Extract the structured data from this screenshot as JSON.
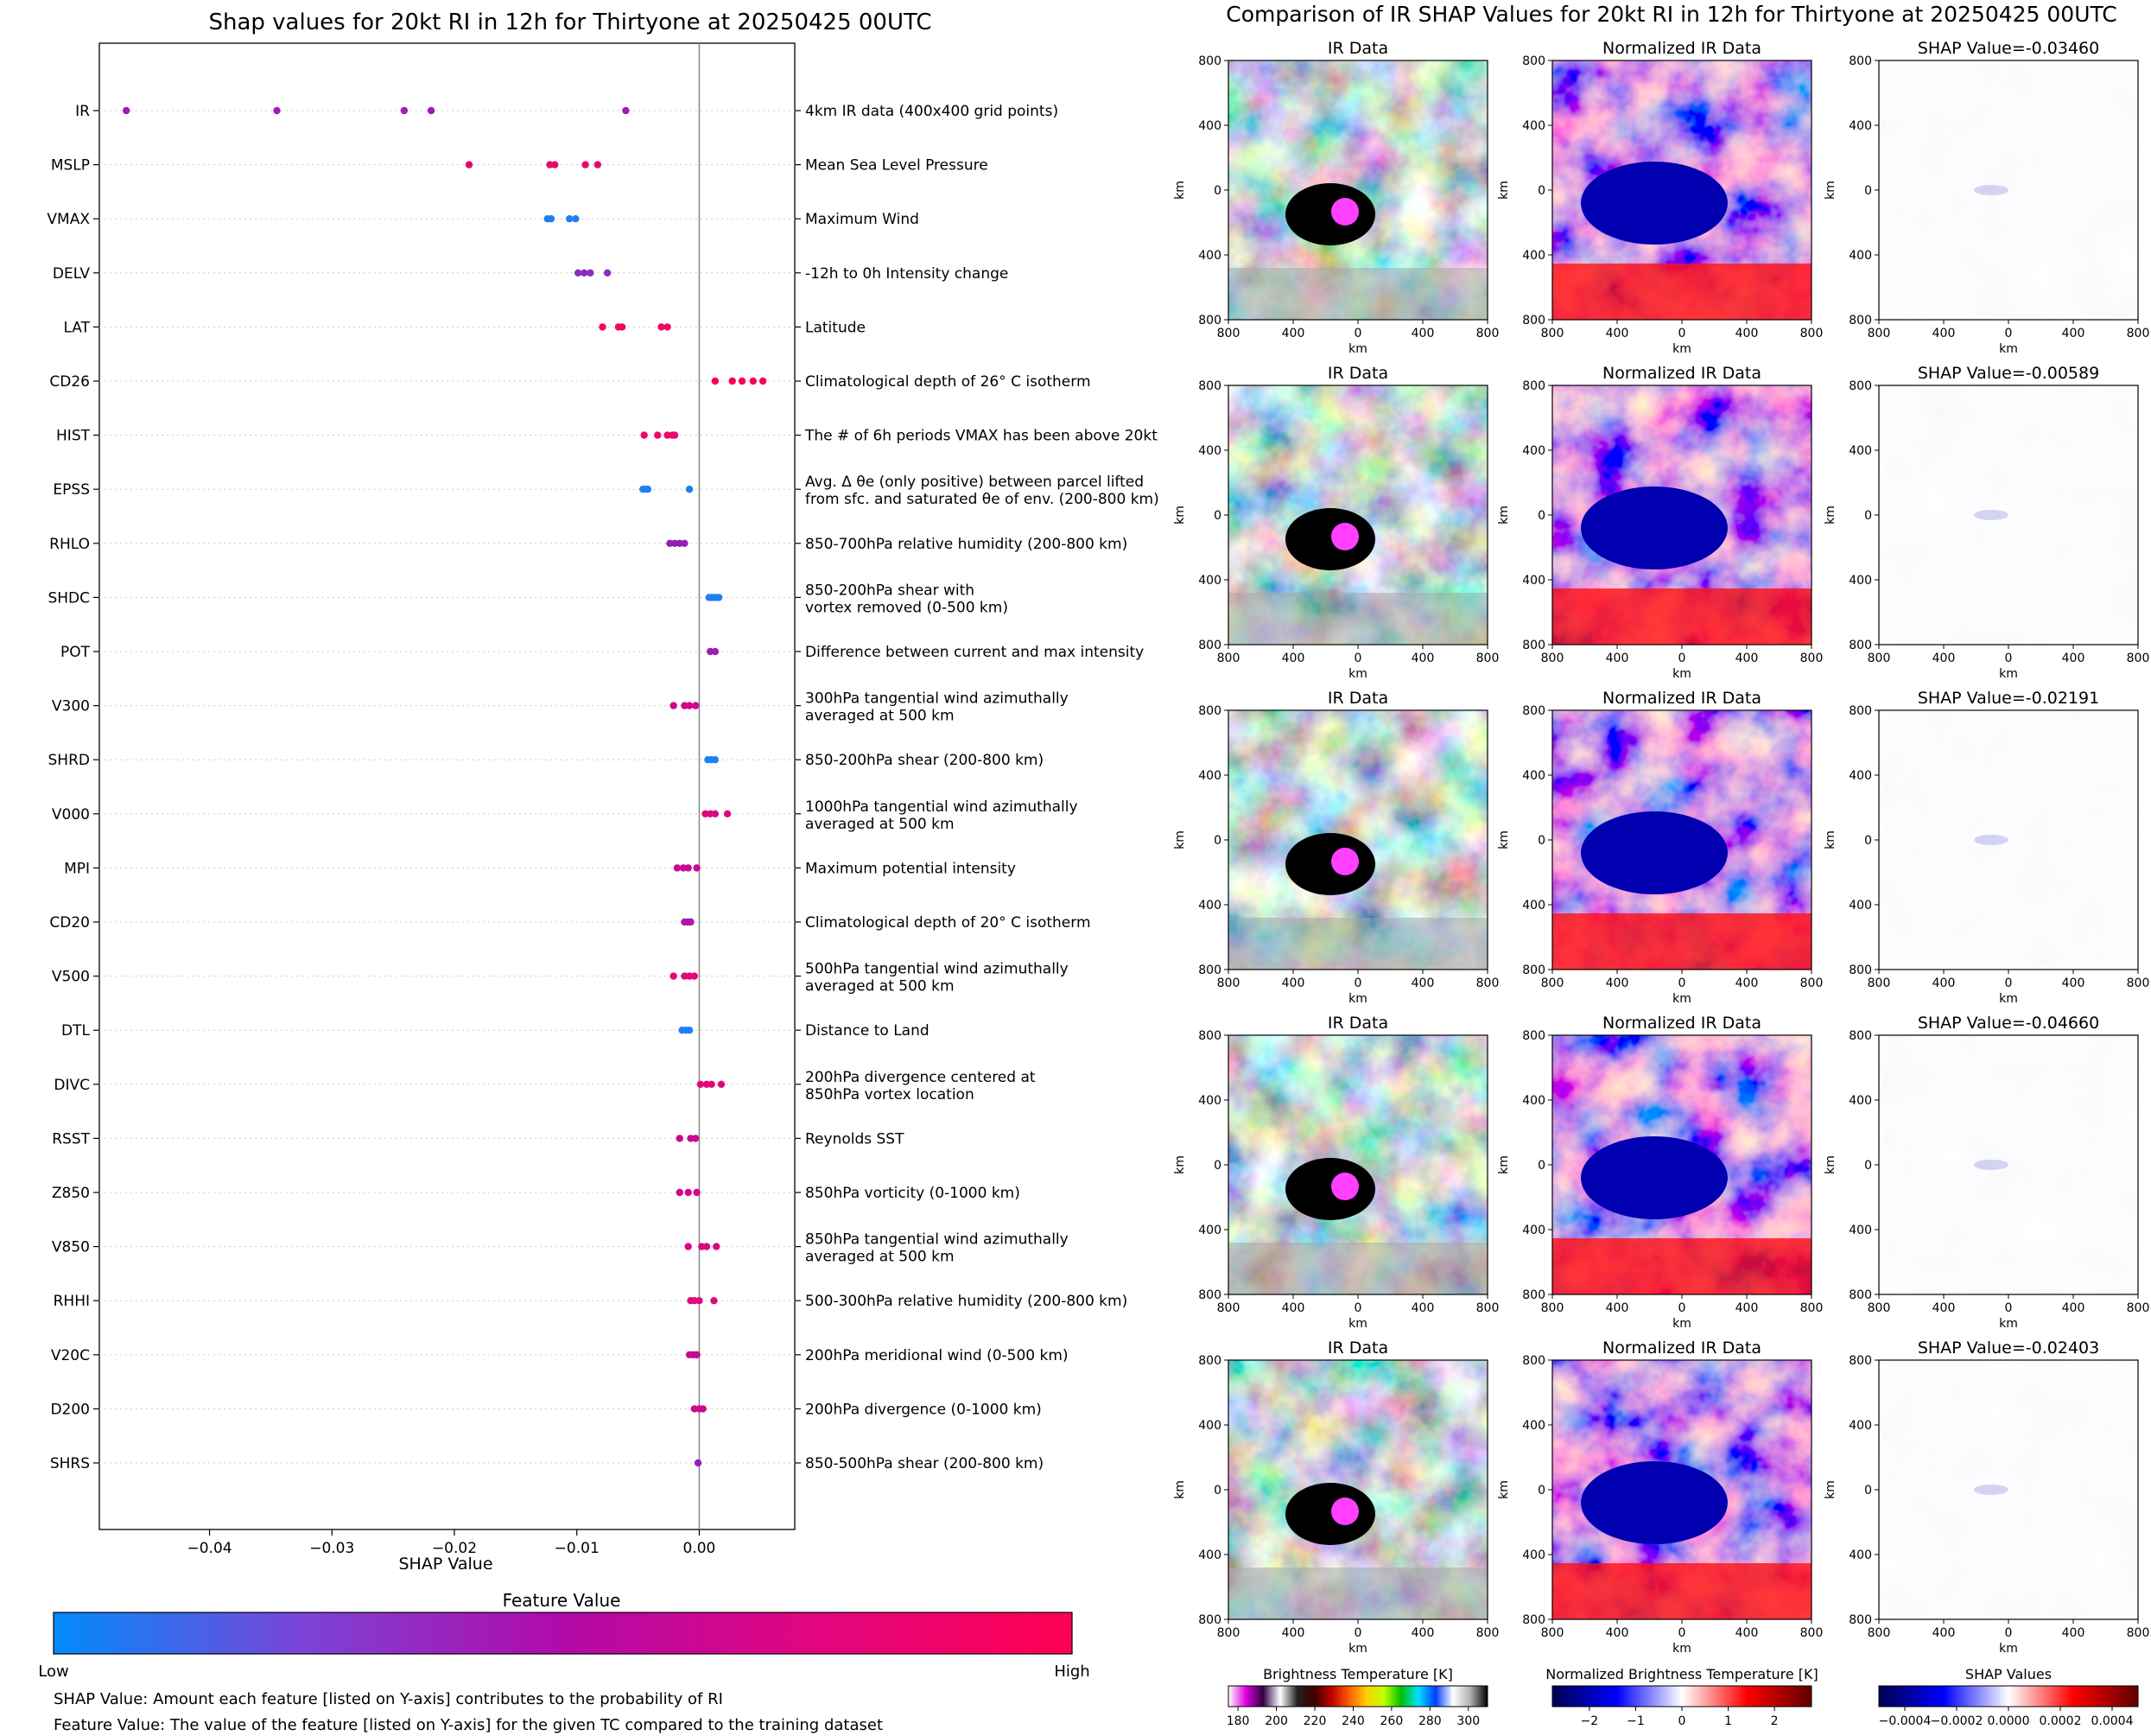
{
  "chart_data": [
    {
      "type": "scatter",
      "title": "Shap values for 20kt RI in 12h for Thirtyone at 20250425 00UTC",
      "xlabel": "SHAP Value",
      "xlim": [
        -0.049,
        0.0078
      ],
      "xticks": [
        -0.04,
        -0.03,
        -0.02,
        -0.01,
        0.0
      ],
      "xtick_labels": [
        "−0.04",
        "−0.03",
        "−0.02",
        "−0.01",
        "0.00"
      ],
      "grid": false,
      "features": [
        {
          "name": "IR",
          "description": "4km IR data (400x400 grid points)",
          "color": "#9b1fb3",
          "values": [
            -0.0468,
            -0.0345,
            -0.0241,
            -0.0219,
            -0.006
          ]
        },
        {
          "name": "MSLP",
          "description": "Mean Sea Level Pressure",
          "color": "#e8096c",
          "values": [
            -0.0188,
            -0.0122,
            -0.0118,
            -0.0093,
            -0.0083
          ]
        },
        {
          "name": "VMAX",
          "description": "Maximum Wind",
          "color": "#1e7ff0",
          "values": [
            -0.0124,
            -0.0121,
            -0.0106,
            -0.0101
          ]
        },
        {
          "name": "DELV",
          "description": "-12h to 0h Intensity change",
          "color": "#8a2cbf",
          "values": [
            -0.0099,
            -0.0094,
            -0.0089,
            -0.0075
          ]
        },
        {
          "name": "LAT",
          "description": "Latitude",
          "color": "#ef0860",
          "values": [
            -0.0079,
            -0.0066,
            -0.0063,
            -0.0031,
            -0.0026
          ]
        },
        {
          "name": "CD26",
          "description": "Climatological depth of 26° C isotherm",
          "color": "#f50552",
          "values": [
            0.0013,
            0.0027,
            0.0035,
            0.0044,
            0.0052
          ]
        },
        {
          "name": "HIST",
          "description": "The # of 6h periods VMAX has been above 20kt",
          "color": "#ea086a",
          "values": [
            -0.0045,
            -0.0034,
            -0.0026,
            -0.0022,
            -0.002
          ]
        },
        {
          "name": "EPSS",
          "description": "Avg. Δ θe (only positive) between parcel lifted from sfc. and saturated θe of env. (200-800 km)",
          "description_lines": [
            "Avg. Δ θe (only positive) between parcel lifted",
            "from sfc. and saturated θe of env. (200-800 km)"
          ],
          "color": "#1e7ff0",
          "values": [
            -0.0046,
            -0.0044,
            -0.0042,
            -0.0008
          ]
        },
        {
          "name": "RHLO",
          "description": "850-700hPa relative humidity (200-800 km)",
          "color": "#9220b8",
          "values": [
            -0.0024,
            -0.002,
            -0.0016,
            -0.0012
          ]
        },
        {
          "name": "SHDC",
          "description": "850-200hPa shear with vortex removed (0-500 km)",
          "description_lines": [
            "850-200hPa shear with",
            "vortex removed (0-500 km)"
          ],
          "color": "#1e7ff0",
          "values": [
            0.0008,
            0.001,
            0.0012,
            0.0014,
            0.0016
          ]
        },
        {
          "name": "POT",
          "description": "Difference between current and max intensity",
          "color": "#9b1fb3",
          "values": [
            0.0009,
            0.0013
          ]
        },
        {
          "name": "V300",
          "description": "300hPa tangential wind azimuthally averaged at 500 km",
          "description_lines": [
            "300hPa tangential wind azimuthally",
            "averaged at 500 km"
          ],
          "color": "#d3068c",
          "values": [
            -0.0021,
            -0.0012,
            -0.0008,
            -0.0003
          ]
        },
        {
          "name": "SHRD",
          "description": "850-200hPa shear (200-800 km)",
          "color": "#1e7ff0",
          "values": [
            0.0007,
            0.001,
            0.0013
          ]
        },
        {
          "name": "V000",
          "description": "1000hPa tangential wind azimuthally averaged at 500 km",
          "description_lines": [
            "1000hPa tangential wind azimuthally",
            "averaged at 500 km"
          ],
          "color": "#dd0780",
          "values": [
            0.0005,
            0.0009,
            0.0013,
            0.0023
          ]
        },
        {
          "name": "MPI",
          "description": "Maximum potential intensity",
          "color": "#c9088f",
          "values": [
            -0.0018,
            -0.0013,
            -0.0009,
            -0.0002
          ]
        },
        {
          "name": "CD20",
          "description": "Climatological depth of 20° C isotherm",
          "color": "#a61ab0",
          "values": [
            -0.0012,
            -0.0009,
            -0.0007
          ]
        },
        {
          "name": "V500",
          "description": "500hPa tangential wind azimuthally averaged at 500 km",
          "description_lines": [
            "500hPa tangential wind azimuthally",
            "averaged at 500 km"
          ],
          "color": "#e2077a",
          "values": [
            -0.0021,
            -0.0012,
            -0.0008,
            -0.0004
          ]
        },
        {
          "name": "DTL",
          "description": "Distance to Land",
          "color": "#1e7ff0",
          "values": [
            -0.0014,
            -0.0011,
            -0.0008
          ]
        },
        {
          "name": "DIVC",
          "description": "200hPa divergence centered at 850hPa vortex location",
          "description_lines": [
            "200hPa divergence centered at",
            "850hPa vortex location"
          ],
          "color": "#e2077a",
          "values": [
            0.0001,
            0.0006,
            0.001,
            0.0018
          ]
        },
        {
          "name": "RSST",
          "description": "Reynolds SST",
          "color": "#c9088f",
          "values": [
            -0.0016,
            -0.0007,
            -0.0003
          ]
        },
        {
          "name": "Z850",
          "description": "850hPa vorticity (0-1000 km)",
          "color": "#d3068c",
          "values": [
            -0.0016,
            -0.0009,
            -0.0002
          ]
        },
        {
          "name": "V850",
          "description": "850hPa tangential wind azimuthally averaged at 500 km",
          "description_lines": [
            "850hPa tangential wind azimuthally",
            "averaged at 500 km"
          ],
          "color": "#dd0780",
          "values": [
            -0.0009,
            0.0002,
            0.0006,
            0.0014
          ]
        },
        {
          "name": "RHHI",
          "description": "500-300hPa relative humidity (200-800 km)",
          "color": "#e2077a",
          "values": [
            -0.0007,
            -0.0004,
            0.0,
            0.0012
          ]
        },
        {
          "name": "V20C",
          "description": "200hPa meridional wind (0-500 km)",
          "color": "#c9088f",
          "values": [
            -0.0008,
            -0.0005,
            -0.0002
          ]
        },
        {
          "name": "D200",
          "description": "200hPa divergence (0-1000 km)",
          "color": "#d3068c",
          "values": [
            -0.0004,
            0.0,
            0.0003
          ]
        },
        {
          "name": "SHRS",
          "description": "850-500hPa shear (200-800 km)",
          "color": "#9220b8",
          "values": [
            -0.0001
          ]
        }
      ],
      "colorbar": {
        "title": "Feature Value",
        "low_label": "Low",
        "high_label": "High",
        "colors": [
          "#008bfb",
          "#7d42d6",
          "#b10aa8",
          "#e2057f",
          "#ff0052"
        ]
      },
      "notes": [
        "SHAP Value: Amount each feature [listed on Y-axis] contributes to the probability of RI",
        "Feature Value: The value of the feature [listed on Y-axis] for the given TC compared to the training dataset"
      ]
    },
    {
      "type": "heatmap",
      "title": "Comparison of IR SHAP Values for 20kt RI in 12h for Thirtyone at 20250425 00UTC",
      "axis_label": "km",
      "tick_labels": [
        "800",
        "400",
        "0",
        "400",
        "800"
      ],
      "rows": [
        {
          "ir_title": "IR Data",
          "norm_title": "Normalized IR Data",
          "shap_title": "SHAP Value=-0.03460"
        },
        {
          "ir_title": "IR Data",
          "norm_title": "Normalized IR Data",
          "shap_title": "SHAP Value=-0.00589"
        },
        {
          "ir_title": "IR Data",
          "norm_title": "Normalized IR Data",
          "shap_title": "SHAP Value=-0.02191"
        },
        {
          "ir_title": "IR Data",
          "norm_title": "Normalized IR Data",
          "shap_title": "SHAP Value=-0.04660"
        },
        {
          "ir_title": "IR Data",
          "norm_title": "Normalized IR Data",
          "shap_title": "SHAP Value=-0.02403"
        }
      ],
      "colorbars": [
        {
          "title": "Brightness Temperature [K]",
          "ticks": [
            "180",
            "200",
            "220",
            "240",
            "260",
            "280",
            "300"
          ],
          "tick_values": [
            180,
            200,
            220,
            240,
            260,
            280,
            300
          ],
          "range": [
            175,
            310
          ],
          "stops": [
            "#ffffff",
            "#e000e0",
            "#300040",
            "#ffffff",
            "#202020",
            "#400000",
            "#c00000",
            "#ff6000",
            "#ffd000",
            "#c0ff00",
            "#00c000",
            "#00e0ff",
            "#0040ff",
            "#ffffff",
            "#b0b0b0",
            "#000000"
          ]
        },
        {
          "title": "Normalized Brightness Temperature [K]",
          "ticks": [
            "−2",
            "−1",
            "0",
            "1",
            "2"
          ],
          "tick_values": [
            -2,
            -1,
            0,
            1,
            2
          ],
          "range": [
            -2.8,
            2.8
          ],
          "stops": [
            "#000050",
            "#0000ff",
            "#ffffff",
            "#ff0000",
            "#600000"
          ]
        },
        {
          "title": "SHAP Values",
          "ticks": [
            "−0.0004",
            "−0.0002",
            "0.0000",
            "0.0002",
            "0.0004"
          ],
          "tick_values": [
            -0.0004,
            -0.0002,
            0,
            0.0002,
            0.0004
          ],
          "range": [
            -0.0005,
            0.0005
          ],
          "stops": [
            "#000050",
            "#0000ff",
            "#ffffff",
            "#ff0000",
            "#600000"
          ]
        }
      ]
    }
  ]
}
